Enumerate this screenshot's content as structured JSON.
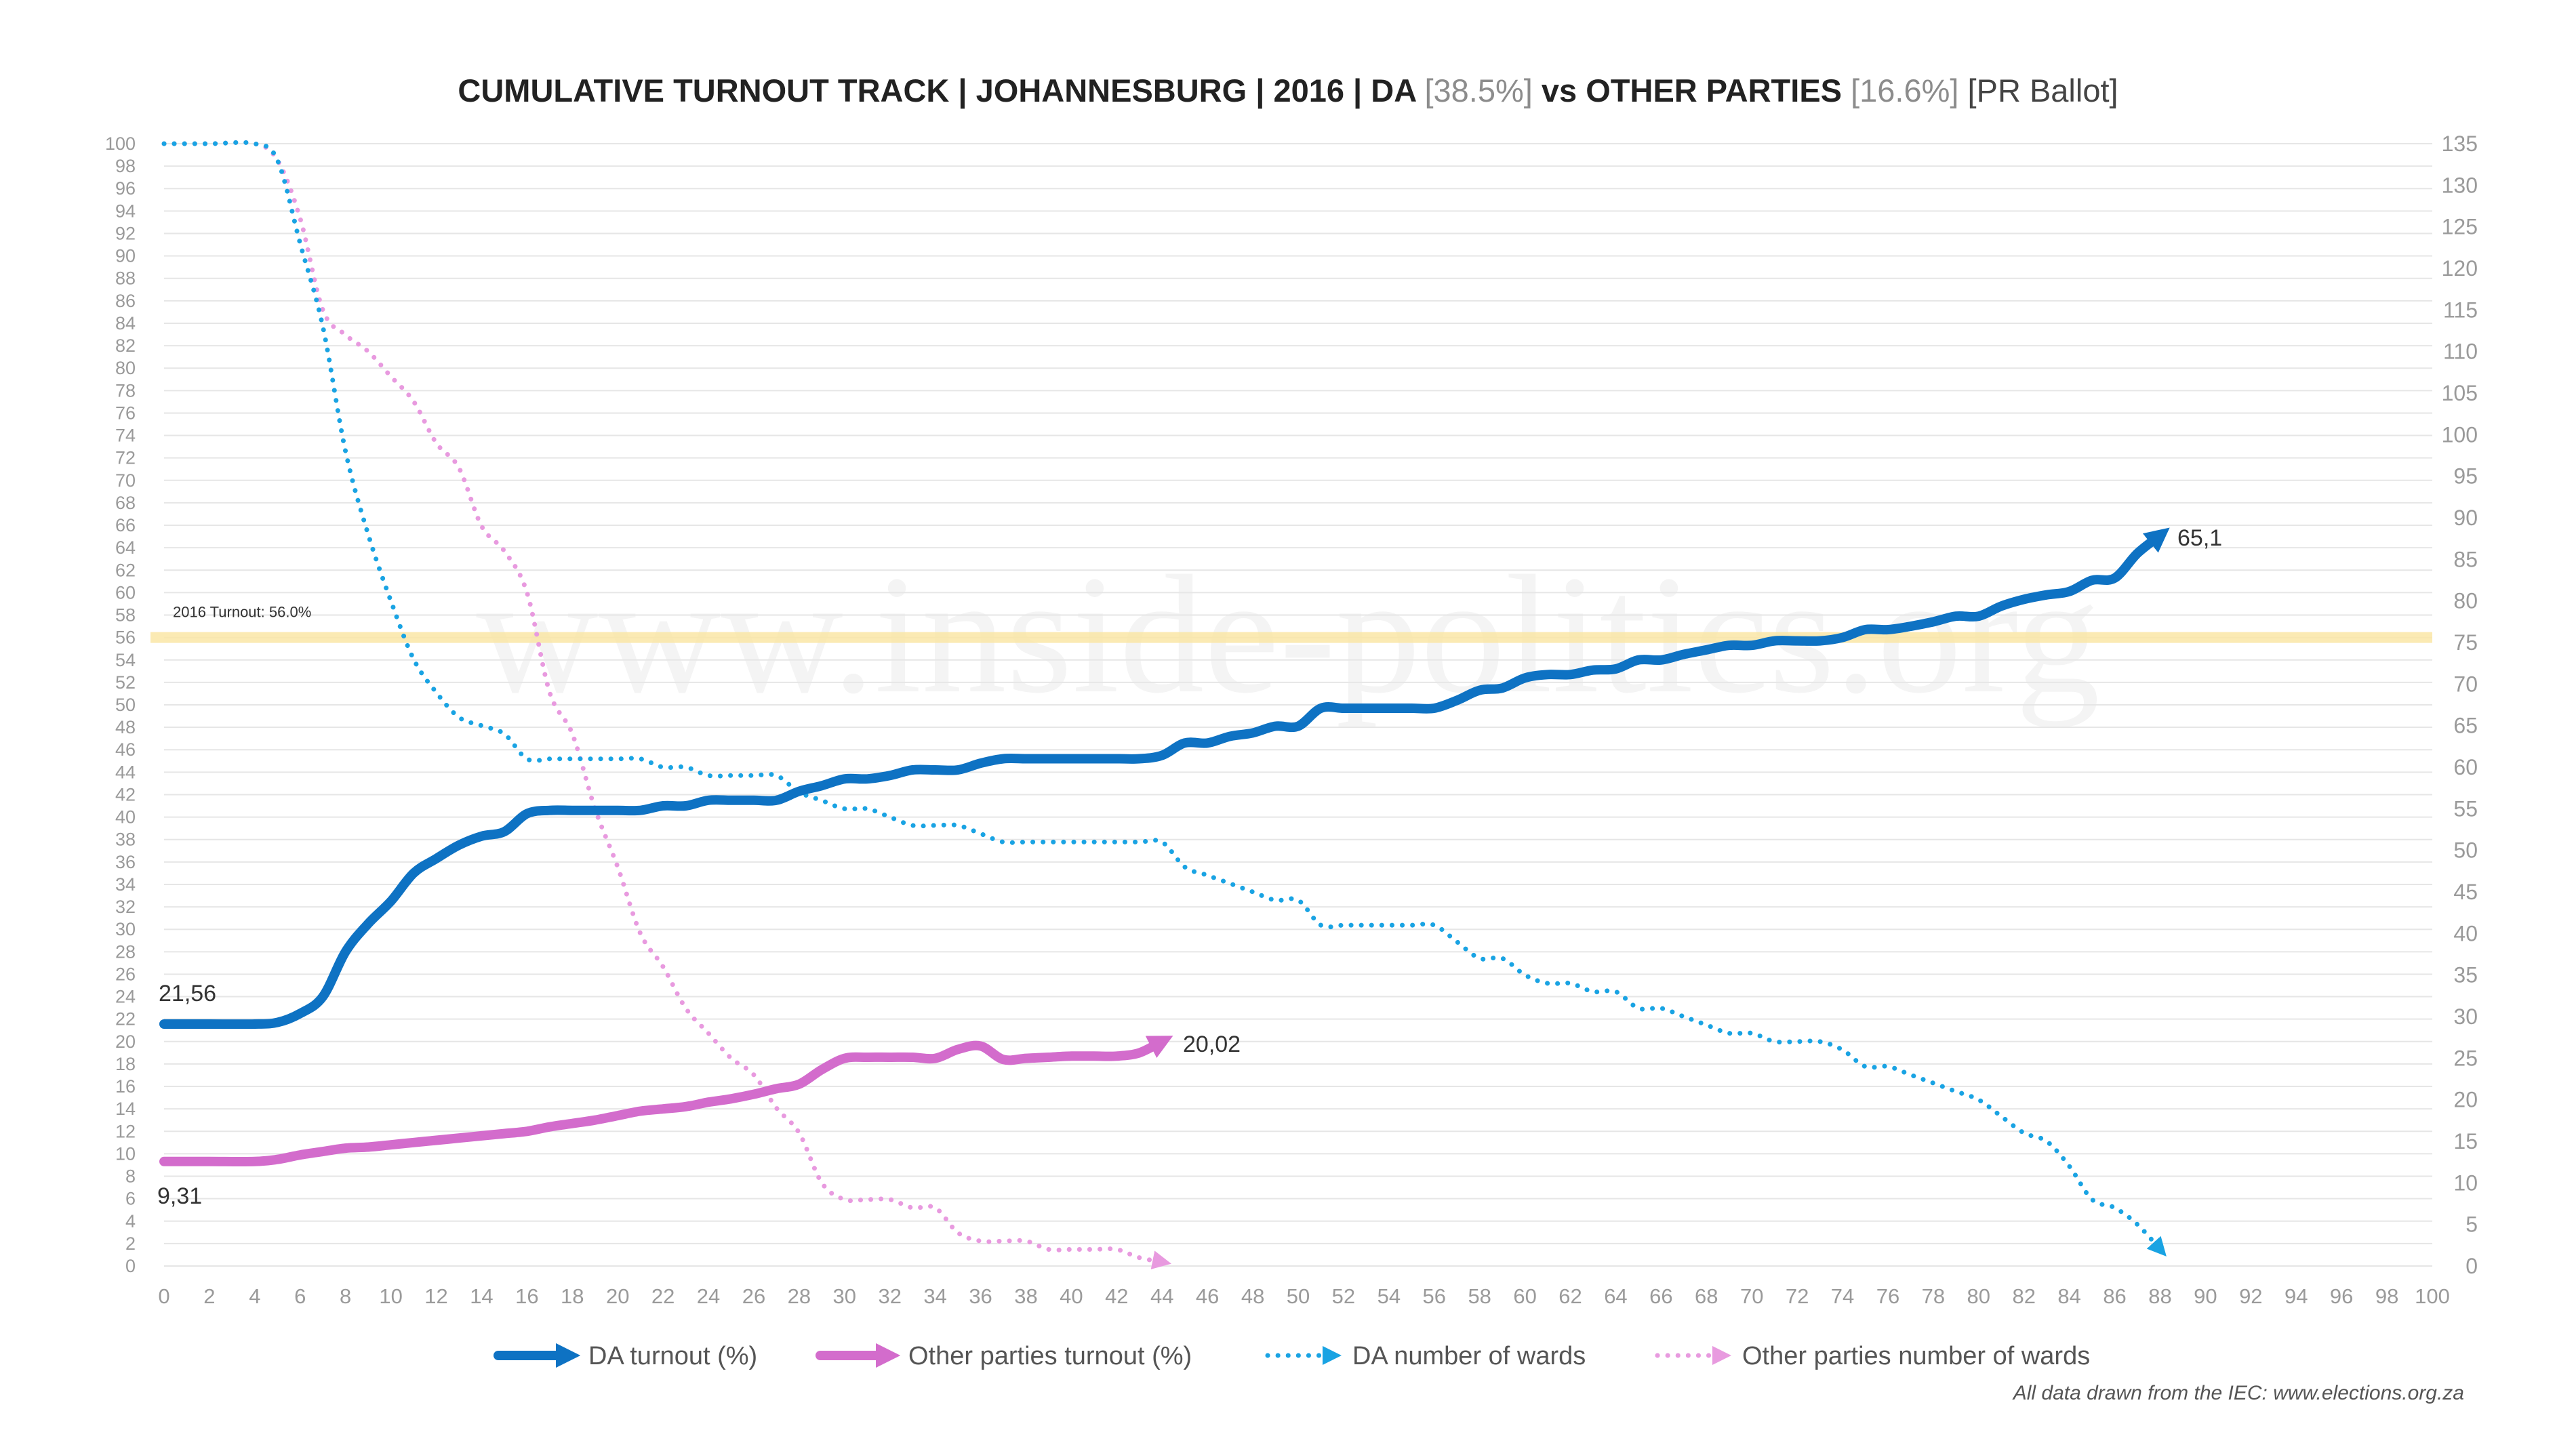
{
  "chart_data": {
    "type": "line",
    "title": {
      "main": "CUMULATIVE TURNOUT TRACK | JOHANNESBURG | 2016 | DA ",
      "da_pct": "[38.5%]",
      "vs": " vs OTHER PARTIES ",
      "other_pct": "[16.6%]",
      "tail": " [PR Ballot]"
    },
    "watermark": "www.inside-politics.org",
    "source": "All data drawn from the IEC: www.elections.org.za",
    "x_axis": {
      "min": 0,
      "max": 100,
      "step": 2
    },
    "y_left": {
      "min": 0,
      "max": 100,
      "step": 2
    },
    "y_right": {
      "min": 0,
      "max": 135,
      "step": 5
    },
    "reference_line": {
      "value": 56,
      "label": "2016 Turnout: 56.0%",
      "color": "#fbe7a6"
    },
    "series": [
      {
        "name": "DA turnout (%)",
        "axis": "left",
        "style": "solid",
        "color": "#0e72c3",
        "x": [
          0,
          2,
          4,
          5,
          6,
          7,
          8,
          9,
          10,
          11,
          12,
          13,
          14,
          15,
          16,
          17,
          18,
          19,
          20,
          21,
          22,
          23,
          24,
          25,
          26,
          27,
          28,
          29,
          30,
          31,
          32,
          33,
          34,
          35,
          36,
          37,
          38,
          39,
          40,
          41,
          42,
          43,
          44,
          45,
          46,
          47,
          48,
          49,
          50,
          51,
          52,
          53,
          54,
          55,
          56,
          57,
          58,
          59,
          60,
          61,
          62,
          63,
          64,
          65,
          66,
          67,
          68,
          69,
          70,
          71,
          72,
          73,
          74,
          75,
          76,
          77,
          78,
          79,
          80,
          81,
          82,
          83,
          84,
          85,
          86,
          87,
          88
        ],
        "values": [
          21.56,
          21.56,
          21.56,
          21.7,
          22.5,
          24,
          28,
          30.5,
          32.5,
          35,
          36.3,
          37.5,
          38.3,
          38.7,
          40.3,
          40.6,
          40.6,
          40.6,
          40.6,
          40.6,
          41,
          41,
          41.5,
          41.5,
          41.5,
          41.5,
          42.3,
          42.8,
          43.4,
          43.4,
          43.7,
          44.2,
          44.2,
          44.2,
          44.8,
          45.2,
          45.2,
          45.2,
          45.2,
          45.2,
          45.2,
          45.2,
          45.5,
          46.6,
          46.6,
          47.2,
          47.5,
          48.1,
          48.1,
          49.7,
          49.7,
          49.7,
          49.7,
          49.7,
          49.7,
          50.4,
          51.3,
          51.5,
          52.4,
          52.7,
          52.7,
          53.1,
          53.2,
          54,
          54,
          54.5,
          54.9,
          55.3,
          55.3,
          55.7,
          55.7,
          55.7,
          56,
          56.7,
          56.7,
          57,
          57.4,
          57.9,
          57.9,
          58.8,
          59.4,
          59.8,
          60.1,
          61.1,
          61.3,
          63.5,
          65.1
        ],
        "end_label": "65,1",
        "start_label": "21,56"
      },
      {
        "name": "Other parties turnout (%)",
        "axis": "left",
        "style": "solid",
        "color": "#d36ccc",
        "x": [
          0,
          2,
          4,
          5,
          6,
          7,
          8,
          9,
          10,
          11,
          12,
          13,
          14,
          15,
          16,
          17,
          18,
          19,
          20,
          21,
          22,
          23,
          24,
          25,
          26,
          27,
          28,
          29,
          30,
          31,
          32,
          33,
          34,
          35,
          36,
          37,
          38,
          39,
          40,
          41,
          42,
          43,
          44
        ],
        "values": [
          9.31,
          9.31,
          9.31,
          9.5,
          9.9,
          10.2,
          10.5,
          10.6,
          10.8,
          11,
          11.2,
          11.4,
          11.6,
          11.8,
          12,
          12.4,
          12.7,
          13,
          13.4,
          13.8,
          14,
          14.2,
          14.6,
          14.9,
          15.3,
          15.8,
          16.2,
          17.5,
          18.5,
          18.6,
          18.6,
          18.6,
          18.5,
          19.3,
          19.6,
          18.4,
          18.5,
          18.6,
          18.7,
          18.7,
          18.7,
          19,
          20.02
        ],
        "end_label": "20,02",
        "start_label": "9,31"
      },
      {
        "name": "DA number of wards",
        "axis": "right",
        "style": "dotted",
        "color": "#19a3e3",
        "x": [
          0,
          2,
          4,
          5,
          6,
          7,
          8,
          9,
          10,
          11,
          12,
          13,
          14,
          15,
          16,
          17,
          18,
          19,
          20,
          21,
          22,
          23,
          24,
          25,
          26,
          27,
          28,
          29,
          30,
          31,
          32,
          33,
          34,
          35,
          36,
          37,
          38,
          39,
          40,
          41,
          42,
          43,
          44,
          45,
          46,
          47,
          48,
          49,
          50,
          51,
          52,
          53,
          54,
          55,
          56,
          57,
          58,
          59,
          60,
          61,
          62,
          63,
          64,
          65,
          66,
          67,
          68,
          69,
          70,
          71,
          72,
          73,
          74,
          75,
          76,
          77,
          78,
          79,
          80,
          81,
          82,
          83,
          84,
          85,
          86,
          87,
          88
        ],
        "values": [
          135,
          135,
          135,
          133,
          123,
          113,
          98,
          88,
          80,
          73,
          69,
          66,
          65,
          64,
          61,
          61,
          61,
          61,
          61,
          61,
          60,
          60,
          59,
          59,
          59,
          59,
          57,
          56,
          55,
          55,
          54,
          53,
          53,
          53,
          52,
          51,
          51,
          51,
          51,
          51,
          51,
          51,
          51,
          48,
          47,
          46,
          45,
          44,
          44,
          41,
          41,
          41,
          41,
          41,
          41,
          39,
          37,
          37,
          35,
          34,
          34,
          33,
          33,
          31,
          31,
          30,
          29,
          28,
          28,
          27,
          27,
          27,
          26,
          24,
          24,
          23,
          22,
          21,
          20,
          18,
          16,
          15,
          12,
          8,
          7,
          5,
          2
        ],
        "end_label": "",
        "start_label": ""
      },
      {
        "name": "Other parties number of wards",
        "axis": "right",
        "style": "dotted",
        "color": "#e89adf",
        "x": [
          0,
          2,
          4,
          5,
          6,
          7,
          8,
          9,
          10,
          11,
          12,
          13,
          14,
          15,
          16,
          17,
          18,
          19,
          20,
          21,
          22,
          23,
          24,
          25,
          26,
          27,
          28,
          29,
          30,
          31,
          32,
          33,
          34,
          35,
          36,
          37,
          38,
          39,
          40,
          41,
          42,
          43,
          44
        ],
        "values": [
          135,
          135,
          135,
          133,
          126,
          115,
          112,
          110,
          107,
          104,
          99,
          96,
          89,
          86,
          81,
          69,
          64,
          55,
          48,
          40,
          36,
          31,
          28,
          25,
          23,
          19,
          16,
          10,
          8,
          8,
          8,
          7,
          7,
          4,
          3,
          3,
          3,
          2,
          2,
          2,
          2,
          1,
          0.5
        ],
        "end_label": "",
        "start_label": ""
      }
    ]
  }
}
